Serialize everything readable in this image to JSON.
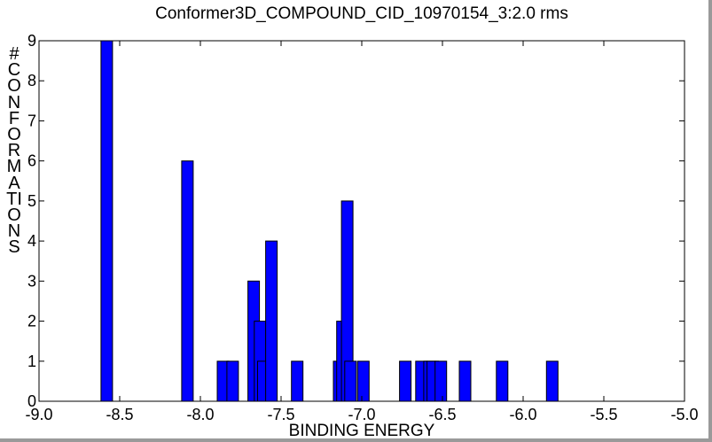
{
  "chart_data": {
    "type": "bar",
    "title": "Conformer3D_COMPOUND_CID_10970154_3:2.0 rms",
    "xlabel": "BINDING ENERGY",
    "ylabel": "# CONFORMATIONS",
    "xlim": [
      -9.0,
      -5.0
    ],
    "ylim": [
      0,
      9
    ],
    "x_ticks": [
      "-9.0",
      "-8.5",
      "-8.0",
      "-7.5",
      "-7.0",
      "-6.5",
      "-6.0",
      "-5.5",
      "-5.0"
    ],
    "y_ticks": [
      "0",
      "1",
      "2",
      "3",
      "4",
      "5",
      "6",
      "7",
      "8",
      "9"
    ],
    "bar_color": "#0000ff",
    "grid": false,
    "x": [
      -8.58,
      -8.08,
      -7.86,
      -7.8,
      -7.67,
      -7.63,
      -7.61,
      -7.56,
      -7.4,
      -7.14,
      -7.12,
      -7.09,
      -7.07,
      -6.99,
      -6.73,
      -6.63,
      -6.58,
      -6.56,
      -6.51,
      -6.36,
      -6.13,
      -5.82
    ],
    "values": [
      9,
      6,
      1,
      1,
      3,
      2,
      1,
      4,
      1,
      1,
      2,
      5,
      1,
      1,
      1,
      1,
      1,
      1,
      1,
      1,
      1,
      1
    ]
  }
}
